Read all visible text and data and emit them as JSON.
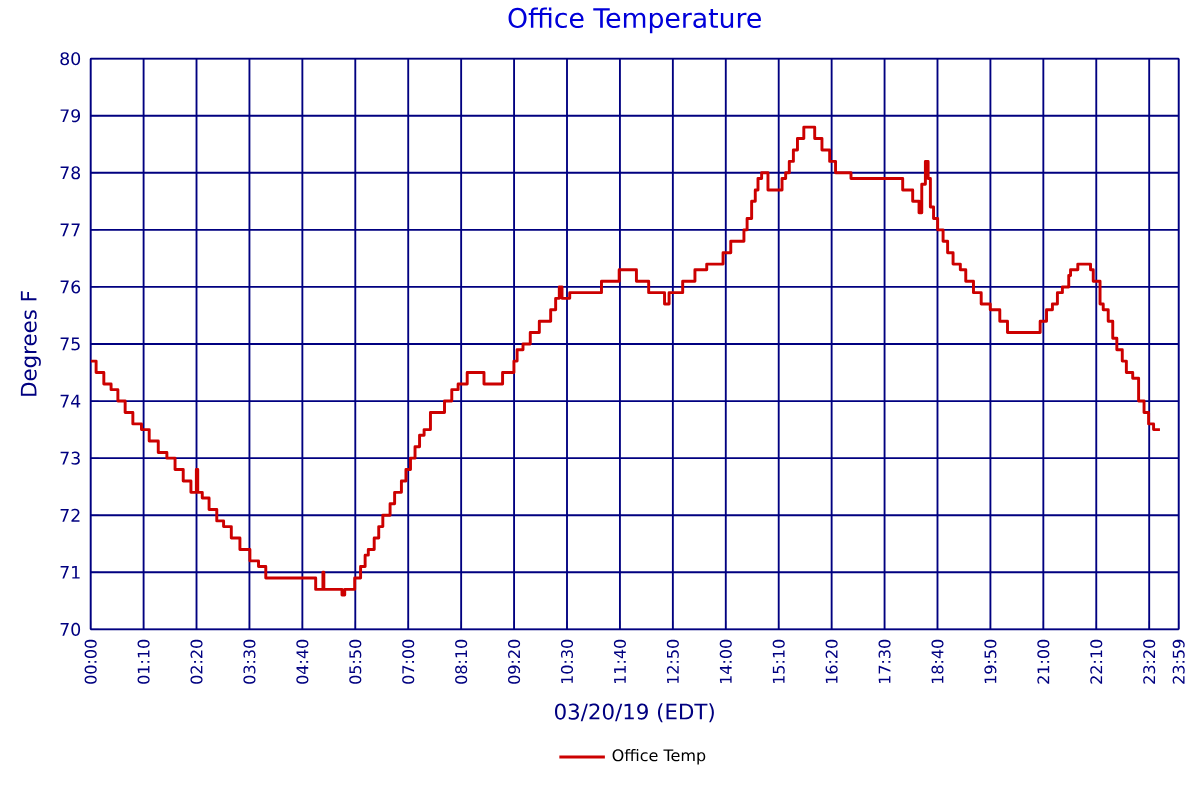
{
  "chart_data": {
    "type": "step",
    "title": "Office Temperature",
    "xlabel": "03/20/19 (EDT)",
    "ylabel": "Degrees F",
    "xlim": [
      0,
      23.9833
    ],
    "ylim": [
      70,
      80
    ],
    "xticks": [
      {
        "value": 0,
        "label": "00:00"
      },
      {
        "value": 1.1667,
        "label": "01:10"
      },
      {
        "value": 2.3333,
        "label": "02:20"
      },
      {
        "value": 3.5,
        "label": "03:30"
      },
      {
        "value": 4.6667,
        "label": "04:40"
      },
      {
        "value": 5.8333,
        "label": "05:50"
      },
      {
        "value": 7,
        "label": "07:00"
      },
      {
        "value": 8.1667,
        "label": "08:10"
      },
      {
        "value": 9.3333,
        "label": "09:20"
      },
      {
        "value": 10.5,
        "label": "10:30"
      },
      {
        "value": 11.6667,
        "label": "11:40"
      },
      {
        "value": 12.8333,
        "label": "12:50"
      },
      {
        "value": 14,
        "label": "14:00"
      },
      {
        "value": 15.1667,
        "label": "15:10"
      },
      {
        "value": 16.3333,
        "label": "16:20"
      },
      {
        "value": 17.5,
        "label": "17:30"
      },
      {
        "value": 18.6667,
        "label": "18:40"
      },
      {
        "value": 19.8333,
        "label": "19:50"
      },
      {
        "value": 21,
        "label": "21:00"
      },
      {
        "value": 22.1667,
        "label": "22:10"
      },
      {
        "value": 23.3333,
        "label": "23:20"
      },
      {
        "value": 23.9833,
        "label": "23:59"
      }
    ],
    "yticks": [
      70,
      71,
      72,
      73,
      74,
      75,
      76,
      77,
      78,
      79,
      80
    ],
    "grid": true,
    "legend": "bottom",
    "marker": "none",
    "series": [
      {
        "name": "Office Temp",
        "color": "#cc0000",
        "x": [
          0,
          0.12,
          0.29,
          0.45,
          0.6,
          0.76,
          0.93,
          1.12,
          1.29,
          1.49,
          1.68,
          1.86,
          2.04,
          2.21,
          2.33,
          2.36,
          2.46,
          2.61,
          2.78,
          2.93,
          3.1,
          3.29,
          3.51,
          3.7,
          3.86,
          4.96,
          5.12,
          5.14,
          5.54,
          5.6,
          5.82,
          5.95,
          6.05,
          6.12,
          6.25,
          6.35,
          6.44,
          6.6,
          6.7,
          6.85,
          6.95,
          7.05,
          7.15,
          7.25,
          7.35,
          7.49,
          7.8,
          7.96,
          8.1,
          8.3,
          8.67,
          9.08,
          9.33,
          9.4,
          9.53,
          9.69,
          9.89,
          10.14,
          10.25,
          10.33,
          10.39,
          10.56,
          11.26,
          11.65,
          12.03,
          12.3,
          12.65,
          12.75,
          13.05,
          13.32,
          13.58,
          13.94,
          14.11,
          14.4,
          14.47,
          14.57,
          14.65,
          14.71,
          14.79,
          14.93,
          15.24,
          15.32,
          15.4,
          15.49,
          15.58,
          15.72,
          15.96,
          16.12,
          16.29,
          16.42,
          16.76,
          17.9,
          18.12,
          18.26,
          18.32,
          18.4,
          18.46,
          18.51,
          18.58,
          18.67,
          18.79,
          18.89,
          19.01,
          19.17,
          19.29,
          19.46,
          19.63,
          19.83,
          20.04,
          20.21,
          20.93,
          21.07,
          21.2,
          21.31,
          21.42,
          21.56,
          21.6,
          21.76,
          22.04,
          22.1,
          22.25,
          22.32,
          22.43,
          22.53,
          22.62,
          22.74,
          22.83,
          22.97,
          23.1,
          23.22,
          23.32,
          23.43,
          23.57
        ],
        "values": [
          74.7,
          74.5,
          74.3,
          74.2,
          74.0,
          73.8,
          73.6,
          73.5,
          73.3,
          73.1,
          73.0,
          72.8,
          72.6,
          72.4,
          72.8,
          72.4,
          72.3,
          72.1,
          71.9,
          71.8,
          71.6,
          71.4,
          71.2,
          71.1,
          70.9,
          70.7,
          71.0,
          70.7,
          70.6,
          70.7,
          70.9,
          71.1,
          71.3,
          71.4,
          71.6,
          71.8,
          72.0,
          72.2,
          72.4,
          72.6,
          72.8,
          73.0,
          73.2,
          73.4,
          73.5,
          73.8,
          74.0,
          74.2,
          74.3,
          74.5,
          74.3,
          74.5,
          74.7,
          74.9,
          75.0,
          75.2,
          75.4,
          75.6,
          75.8,
          76.0,
          75.8,
          75.9,
          76.1,
          76.3,
          76.1,
          75.9,
          75.7,
          75.9,
          76.1,
          76.3,
          76.4,
          76.6,
          76.8,
          77.0,
          77.2,
          77.5,
          77.7,
          77.9,
          78.0,
          77.7,
          77.9,
          78.0,
          78.2,
          78.4,
          78.6,
          78.8,
          78.6,
          78.4,
          78.2,
          78.0,
          77.9,
          77.7,
          77.5,
          77.3,
          77.8,
          78.2,
          77.9,
          77.4,
          77.2,
          77.0,
          76.8,
          76.6,
          76.4,
          76.3,
          76.1,
          75.9,
          75.7,
          75.6,
          75.4,
          75.2,
          75.4,
          75.6,
          75.7,
          75.9,
          76.0,
          76.2,
          76.3,
          76.4,
          76.3,
          76.1,
          75.7,
          75.6,
          75.4,
          75.1,
          74.9,
          74.7,
          74.5,
          74.4,
          74.0,
          73.8,
          73.6,
          73.5,
          73.5
        ]
      }
    ]
  }
}
